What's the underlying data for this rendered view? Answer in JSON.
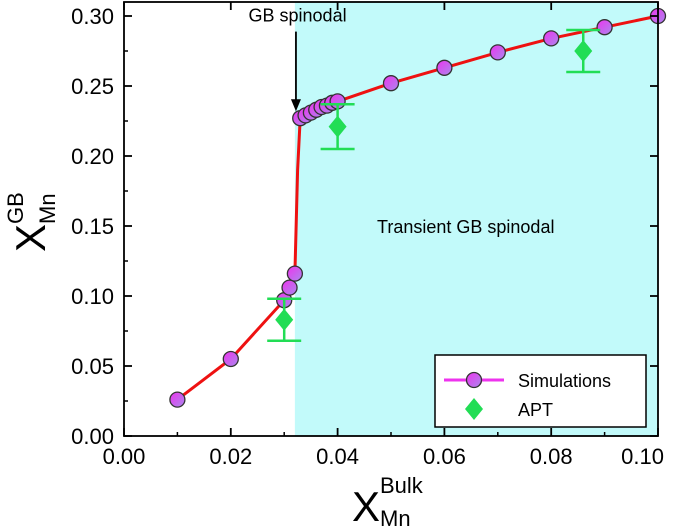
{
  "chart_data": {
    "type": "line",
    "xlabel": {
      "main": "X",
      "sup": "Bulk",
      "sub": "Mn"
    },
    "ylabel": {
      "main": "X",
      "sup": "GB",
      "sub": "Mn"
    },
    "xlim": [
      0.0,
      0.1
    ],
    "ylim": [
      0.0,
      0.31
    ],
    "xticks": [
      0.0,
      0.02,
      0.04,
      0.06,
      0.08,
      0.1
    ],
    "xtick_labels": [
      "0.00",
      "0.02",
      "0.04",
      "0.06",
      "0.08",
      "0.10"
    ],
    "yticks": [
      0.0,
      0.05,
      0.1,
      0.15,
      0.2,
      0.25,
      0.3
    ],
    "ytick_labels": [
      "0.00",
      "0.05",
      "0.10",
      "0.15",
      "0.20",
      "0.25",
      "0.30"
    ],
    "grid": false,
    "shaded_region": {
      "x_from": 0.032,
      "x_to": 0.1,
      "color": "#c2fafa"
    },
    "annotations": [
      {
        "text": "GB spinodal",
        "x": 0.0325,
        "y": 0.296,
        "arrow_to": [
          0.0322,
          0.232
        ]
      },
      {
        "text": "Transient GB spinodal",
        "x": 0.064,
        "y": 0.145
      }
    ],
    "legend_position": "bottom-right",
    "series": [
      {
        "name": "Simulations",
        "kind": "line-marker",
        "line_color": "#ee1111",
        "marker_color": "#ee33ee",
        "marker_color_alt": "#aa88ee",
        "x": [
          0.01,
          0.02,
          0.03,
          0.031,
          0.032,
          0.0325,
          0.033,
          0.034,
          0.035,
          0.036,
          0.037,
          0.038,
          0.039,
          0.04,
          0.05,
          0.06,
          0.07,
          0.08,
          0.09,
          0.1
        ],
        "y": [
          0.026,
          0.055,
          0.097,
          0.106,
          0.116,
          0.19,
          0.227,
          0.229,
          0.231,
          0.233,
          0.235,
          0.236,
          0.238,
          0.239,
          0.252,
          0.263,
          0.274,
          0.284,
          0.292,
          0.3
        ]
      },
      {
        "name": "APT",
        "kind": "marker-errorbar",
        "color": "#22dd55",
        "x": [
          0.03,
          0.04,
          0.086
        ],
        "y": [
          0.083,
          0.221,
          0.275
        ],
        "yerr": [
          0.015,
          0.016,
          0.015
        ]
      }
    ]
  }
}
